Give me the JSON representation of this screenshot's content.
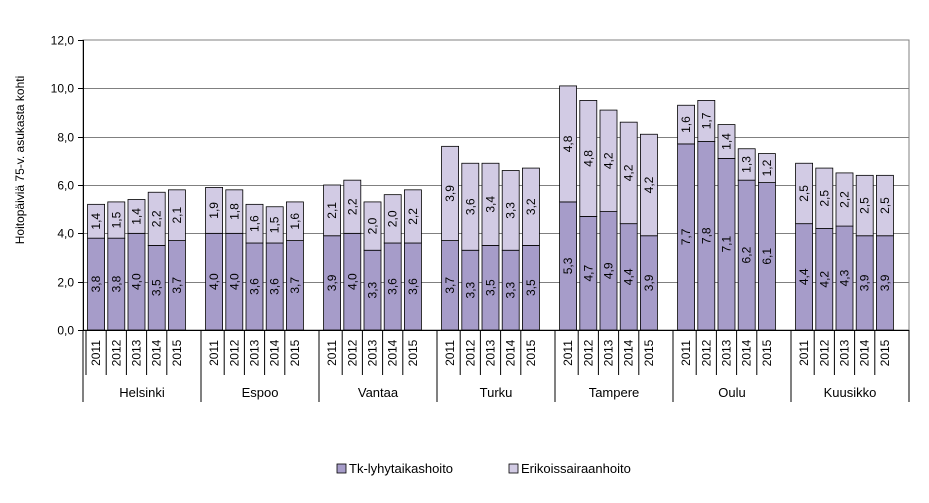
{
  "chart_data": {
    "type": "bar",
    "stacked": true,
    "ylabel": "Hoitopäiviä  75-v. asukasta kohti",
    "ylim": [
      0,
      12
    ],
    "yticks": [
      "0,0",
      "2,0",
      "4,0",
      "6,0",
      "8,0",
      "10,0",
      "12,0"
    ],
    "grid": true,
    "legend": "bottom",
    "years": [
      "2011",
      "2012",
      "2013",
      "2014",
      "2015"
    ],
    "groups": [
      "Helsinki",
      "Espoo",
      "Vantaa",
      "Turku",
      "Tampere",
      "Oulu",
      "Kuusikko"
    ],
    "series": [
      {
        "name": "Tk-lyhytaikashoito",
        "color": "#a69cc9",
        "values": [
          [
            3.8,
            3.8,
            4.0,
            3.5,
            3.7
          ],
          [
            4.0,
            4.0,
            3.6,
            3.6,
            3.7
          ],
          [
            3.9,
            4.0,
            3.3,
            3.6,
            3.6
          ],
          [
            3.7,
            3.3,
            3.5,
            3.3,
            3.5
          ],
          [
            5.3,
            4.7,
            4.9,
            4.4,
            3.9
          ],
          [
            7.7,
            7.8,
            7.1,
            6.2,
            6.1
          ],
          [
            4.4,
            4.2,
            4.3,
            3.9,
            3.9
          ]
        ],
        "labels": [
          [
            "3,8",
            "3,8",
            "4,0",
            "3,5",
            "3,7"
          ],
          [
            "4,0",
            "4,0",
            "3,6",
            "3,6",
            "3,7"
          ],
          [
            "3,9",
            "4,0",
            "3,3",
            "3,6",
            "3,6"
          ],
          [
            "3,7",
            "3,3",
            "3,5",
            "3,3",
            "3,5"
          ],
          [
            "5,3",
            "4,7",
            "4,9",
            "4,4",
            "3,9"
          ],
          [
            "7,7",
            "7,8",
            "7,1",
            "6,2",
            "6,1"
          ],
          [
            "4,4",
            "4,2",
            "4,3",
            "3,9",
            "3,9"
          ]
        ]
      },
      {
        "name": "Erikoissairaanhoito",
        "color": "#d2cbe4",
        "values": [
          [
            1.4,
            1.5,
            1.4,
            2.2,
            2.1
          ],
          [
            1.9,
            1.8,
            1.6,
            1.5,
            1.6
          ],
          [
            2.1,
            2.2,
            2.0,
            2.0,
            2.2
          ],
          [
            3.9,
            3.6,
            3.4,
            3.3,
            3.2
          ],
          [
            4.8,
            4.8,
            4.2,
            4.2,
            4.2
          ],
          [
            1.6,
            1.7,
            1.4,
            1.3,
            1.2
          ],
          [
            2.5,
            2.5,
            2.2,
            2.5,
            2.5
          ]
        ],
        "labels": [
          [
            "1,4",
            "1,5",
            "1,4",
            "2,2",
            "2,1"
          ],
          [
            "1,9",
            "1,8",
            "1,6",
            "1,5",
            "1,6"
          ],
          [
            "2,1",
            "2,2",
            "2,0",
            "2,0",
            "2,2"
          ],
          [
            "3,9",
            "3,6",
            "3,4",
            "3,3",
            "3,2"
          ],
          [
            "4,8",
            "4,8",
            "4,2",
            "4,2",
            "4,2"
          ],
          [
            "1,6",
            "1,7",
            "1,4",
            "1,3",
            "1,2"
          ],
          [
            "2,5",
            "2,5",
            "2,2",
            "2,5",
            "2,5"
          ]
        ]
      }
    ]
  }
}
